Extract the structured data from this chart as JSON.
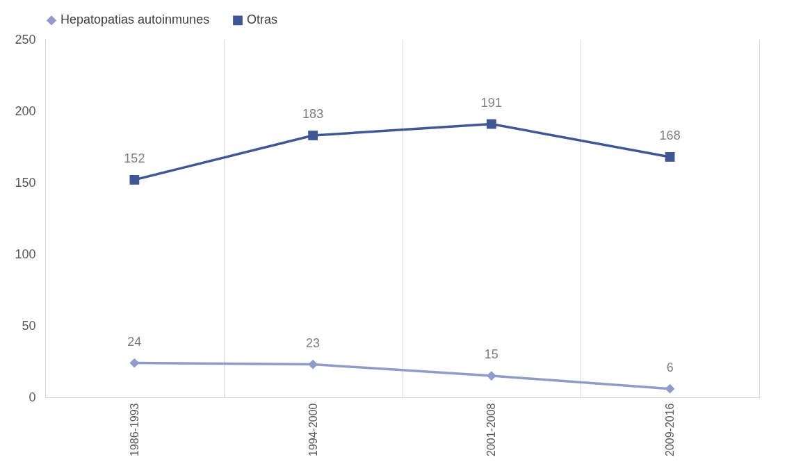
{
  "chart_data": {
    "type": "line",
    "categories": [
      "1986-1993",
      "1994-2000",
      "2001-2008",
      "2009-2016"
    ],
    "series": [
      {
        "name": "Hepatopatias autoinmunes",
        "color": "#8f9bc8",
        "marker": "diamond",
        "values": [
          24,
          23,
          15,
          6
        ]
      },
      {
        "name": "Otras",
        "color": "#3f5795",
        "marker": "square",
        "values": [
          152,
          183,
          191,
          168
        ]
      }
    ],
    "ylim": [
      0,
      250
    ],
    "yticks": [
      0,
      50,
      100,
      150,
      200,
      250
    ],
    "grid": "x",
    "legend": "top",
    "data_labels": true
  }
}
